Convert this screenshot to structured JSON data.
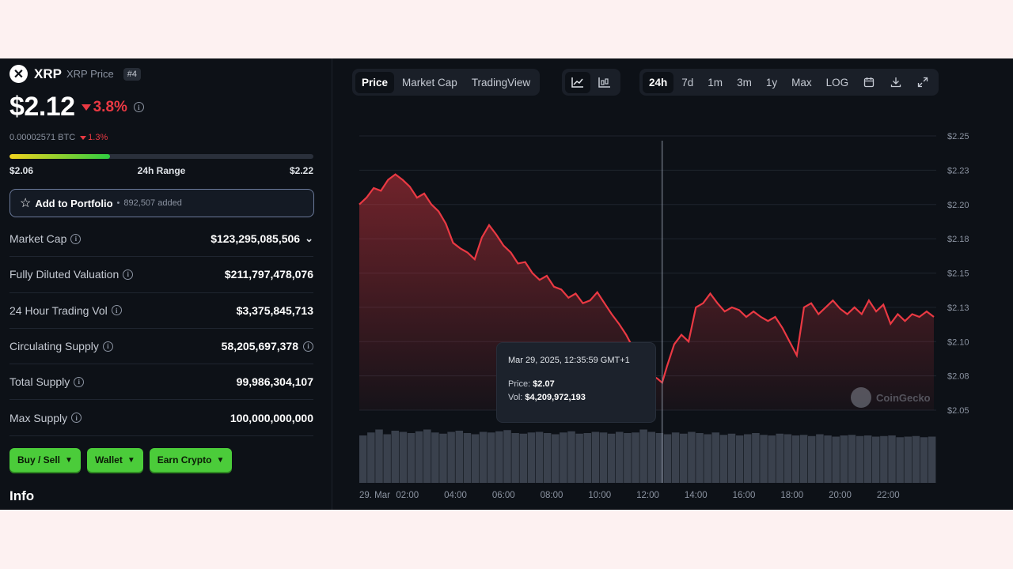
{
  "coin": {
    "logo_letter": "✕",
    "symbol": "XRP",
    "name": "XRP Price",
    "rank": "#4",
    "price": "$2.12",
    "change_24h": "3.8%",
    "btc_price": "0.00002571 BTC",
    "btc_change": "1.3%",
    "range_low": "$2.06",
    "range_label": "24h Range",
    "range_high": "$2.22",
    "range_position": 0.33
  },
  "portfolio": {
    "label": "Add to Portfolio",
    "separator": "•",
    "added": "892,507 added"
  },
  "stats": [
    {
      "label": "Market Cap",
      "value": "$123,295,085,506"
    },
    {
      "label": "Fully Diluted Valuation",
      "value": "$211,797,478,076"
    },
    {
      "label": "24 Hour Trading Vol",
      "value": "$3,375,845,713"
    },
    {
      "label": "Circulating Supply",
      "value": "58,205,697,378"
    },
    {
      "label": "Total Supply",
      "value": "99,986,304,107"
    },
    {
      "label": "Max Supply",
      "value": "100,000,000,000"
    }
  ],
  "actions": [
    {
      "label": "Buy / Sell"
    },
    {
      "label": "Wallet"
    },
    {
      "label": "Earn Crypto"
    }
  ],
  "info_heading": "Info",
  "chart_tabs": [
    "Price",
    "Market Cap",
    "TradingView"
  ],
  "time_tabs": [
    "24h",
    "7d",
    "1m",
    "3m",
    "1y",
    "Max",
    "LOG"
  ],
  "tooltip": {
    "date": "Mar 29, 2025, 12:35:59 GMT+1",
    "price_label": "Price:",
    "price_value": "$2.07",
    "vol_label": "Vol:",
    "vol_value": "$4,209,972,193"
  },
  "watermark": "CoinGecko",
  "colors": {
    "line": "#ea3943",
    "accent_green": "#4bcc3a",
    "background": "#0d1117"
  },
  "chart_data": {
    "type": "area",
    "y_ticks": [
      "$2.25",
      "$2.23",
      "$2.20",
      "$2.18",
      "$2.15",
      "$2.13",
      "$2.10",
      "$2.08",
      "$2.05"
    ],
    "x_ticks": [
      "29. Mar",
      "02:00",
      "04:00",
      "06:00",
      "08:00",
      "10:00",
      "12:00",
      "14:00",
      "16:00",
      "18:00",
      "20:00",
      "22:00"
    ],
    "ylim": [
      2.05,
      2.25
    ],
    "price_series": [
      [
        0.0,
        2.2
      ],
      [
        0.3,
        2.205
      ],
      [
        0.6,
        2.212
      ],
      [
        0.9,
        2.21
      ],
      [
        1.2,
        2.218
      ],
      [
        1.5,
        2.222
      ],
      [
        1.8,
        2.218
      ],
      [
        2.1,
        2.213
      ],
      [
        2.4,
        2.205
      ],
      [
        2.7,
        2.208
      ],
      [
        3.0,
        2.2
      ],
      [
        3.3,
        2.195
      ],
      [
        3.6,
        2.186
      ],
      [
        3.9,
        2.172
      ],
      [
        4.2,
        2.168
      ],
      [
        4.5,
        2.165
      ],
      [
        4.8,
        2.16
      ],
      [
        5.1,
        2.176
      ],
      [
        5.4,
        2.185
      ],
      [
        5.7,
        2.178
      ],
      [
        6.0,
        2.17
      ],
      [
        6.3,
        2.165
      ],
      [
        6.6,
        2.157
      ],
      [
        6.9,
        2.158
      ],
      [
        7.2,
        2.15
      ],
      [
        7.5,
        2.145
      ],
      [
        7.8,
        2.148
      ],
      [
        8.1,
        2.14
      ],
      [
        8.4,
        2.138
      ],
      [
        8.7,
        2.132
      ],
      [
        9.0,
        2.135
      ],
      [
        9.3,
        2.128
      ],
      [
        9.6,
        2.13
      ],
      [
        9.9,
        2.136
      ],
      [
        10.2,
        2.128
      ],
      [
        10.5,
        2.12
      ],
      [
        10.8,
        2.113
      ],
      [
        11.1,
        2.105
      ],
      [
        11.4,
        2.095
      ],
      [
        11.7,
        2.085
      ],
      [
        12.0,
        2.08
      ],
      [
        12.2,
        2.075
      ],
      [
        12.4,
        2.073
      ],
      [
        12.6,
        2.07
      ],
      [
        12.8,
        2.082
      ],
      [
        13.1,
        2.098
      ],
      [
        13.4,
        2.105
      ],
      [
        13.7,
        2.1
      ],
      [
        14.0,
        2.125
      ],
      [
        14.3,
        2.128
      ],
      [
        14.6,
        2.135
      ],
      [
        14.9,
        2.128
      ],
      [
        15.2,
        2.122
      ],
      [
        15.5,
        2.125
      ],
      [
        15.8,
        2.123
      ],
      [
        16.1,
        2.118
      ],
      [
        16.4,
        2.122
      ],
      [
        16.7,
        2.118
      ],
      [
        17.0,
        2.115
      ],
      [
        17.3,
        2.118
      ],
      [
        17.6,
        2.11
      ],
      [
        17.9,
        2.1
      ],
      [
        18.2,
        2.09
      ],
      [
        18.5,
        2.125
      ],
      [
        18.8,
        2.128
      ],
      [
        19.1,
        2.12
      ],
      [
        19.4,
        2.125
      ],
      [
        19.7,
        2.13
      ],
      [
        20.0,
        2.124
      ],
      [
        20.3,
        2.12
      ],
      [
        20.6,
        2.125
      ],
      [
        20.9,
        2.12
      ],
      [
        21.2,
        2.13
      ],
      [
        21.5,
        2.122
      ],
      [
        21.8,
        2.127
      ],
      [
        22.1,
        2.113
      ],
      [
        22.4,
        2.12
      ],
      [
        22.7,
        2.115
      ],
      [
        23.0,
        2.12
      ],
      [
        23.3,
        2.118
      ],
      [
        23.6,
        2.122
      ],
      [
        23.9,
        2.118
      ]
    ],
    "volume_series_relative": [
      0.8,
      0.85,
      0.9,
      0.82,
      0.88,
      0.86,
      0.84,
      0.87,
      0.9,
      0.85,
      0.83,
      0.86,
      0.88,
      0.84,
      0.82,
      0.86,
      0.85,
      0.87,
      0.89,
      0.84,
      0.83,
      0.85,
      0.86,
      0.84,
      0.82,
      0.85,
      0.87,
      0.83,
      0.84,
      0.86,
      0.85,
      0.83,
      0.86,
      0.84,
      0.85,
      0.9,
      0.86,
      0.84,
      0.82,
      0.85,
      0.83,
      0.86,
      0.84,
      0.82,
      0.85,
      0.81,
      0.83,
      0.8,
      0.82,
      0.84,
      0.81,
      0.8,
      0.83,
      0.82,
      0.8,
      0.81,
      0.79,
      0.82,
      0.8,
      0.78,
      0.8,
      0.81,
      0.79,
      0.8,
      0.78,
      0.79,
      0.8,
      0.77,
      0.78,
      0.79,
      0.77,
      0.78
    ],
    "crosshair_x": 12.6
  }
}
